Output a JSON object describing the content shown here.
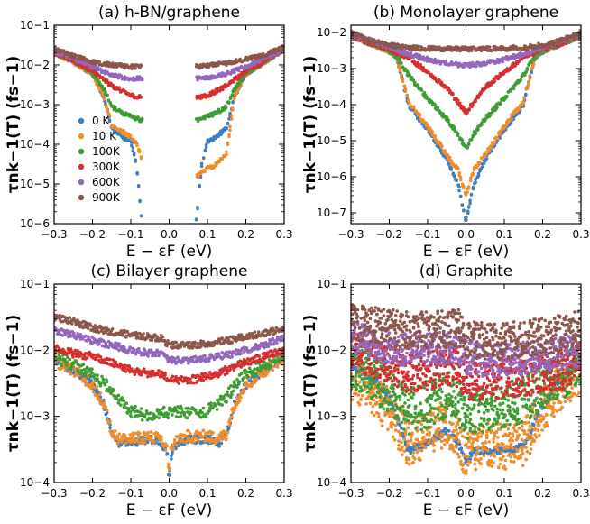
{
  "chart_data": [
    {
      "type": "scatter",
      "title": "(a) h-BN/graphene",
      "xlabel": "E − εF (eV)",
      "ylabel": "τnk−1(T) (fs−1)",
      "xlim": [
        -0.3,
        0.3
      ],
      "ylim_log10": [
        -6,
        -1
      ],
      "yscale": "log",
      "xticks": [
        "−0.3",
        "−0.2",
        "−0.1",
        "0.0",
        "0.1",
        "0.2",
        "0.3"
      ],
      "yticks": [
        "10−6",
        "10−5",
        "10−4",
        "10−3",
        "10−2",
        "10−1"
      ],
      "legend_position": "center-left",
      "gap": [
        -0.07,
        0.07
      ],
      "series": [
        {
          "name": "0 K",
          "color": "#3a7ec4",
          "band": 0.05,
          "x": [
            -0.3,
            -0.25,
            -0.2,
            -0.17,
            -0.15,
            -0.12,
            -0.1,
            -0.085,
            -0.075,
            -0.07,
            0.07,
            0.075,
            0.085,
            0.1,
            0.12,
            0.15,
            0.17,
            0.2,
            0.25,
            0.3
          ],
          "y": [
            0.02,
            0.012,
            0.006,
            0.0015,
            0.00025,
            0.00015,
            0.00012,
            3e-05,
            3e-06,
            1e-06,
            1e-06,
            3e-06,
            3e-05,
            0.00012,
            0.00015,
            0.00025,
            0.0015,
            0.006,
            0.012,
            0.025
          ]
        },
        {
          "name": "10 K",
          "color": "#f28c28",
          "band": 0.05,
          "x": [
            -0.3,
            -0.25,
            -0.2,
            -0.17,
            -0.15,
            -0.12,
            -0.1,
            -0.085,
            -0.07,
            0.07,
            0.085,
            0.1,
            0.12,
            0.15,
            0.17,
            0.2,
            0.25,
            0.3
          ],
          "y": [
            0.02,
            0.012,
            0.006,
            0.0015,
            0.0003,
            0.0002,
            0.00015,
            0.0001,
            4e-05,
            1.5e-05,
            2e-05,
            2.5e-05,
            3e-05,
            6e-05,
            0.0015,
            0.006,
            0.012,
            0.025
          ]
        },
        {
          "name": "100K",
          "color": "#3f9c35",
          "band": 0.05,
          "x": [
            -0.3,
            -0.25,
            -0.2,
            -0.17,
            -0.15,
            -0.12,
            -0.1,
            -0.085,
            -0.07,
            0.07,
            0.085,
            0.1,
            0.12,
            0.15,
            0.17,
            0.2,
            0.25,
            0.3
          ],
          "y": [
            0.02,
            0.013,
            0.006,
            0.0025,
            0.0009,
            0.0006,
            0.0005,
            0.00045,
            0.0004,
            0.0004,
            0.00045,
            0.0005,
            0.0006,
            0.0009,
            0.0025,
            0.006,
            0.013,
            0.025
          ]
        },
        {
          "name": "300K",
          "color": "#d62f2f",
          "band": 0.05,
          "x": [
            -0.3,
            -0.25,
            -0.2,
            -0.15,
            -0.1,
            -0.07,
            0.07,
            0.1,
            0.15,
            0.2,
            0.25,
            0.3
          ],
          "y": [
            0.02,
            0.013,
            0.007,
            0.003,
            0.0017,
            0.0015,
            0.0015,
            0.0017,
            0.003,
            0.007,
            0.013,
            0.025
          ]
        },
        {
          "name": "600K",
          "color": "#9467bd",
          "band": 0.05,
          "x": [
            -0.3,
            -0.25,
            -0.2,
            -0.15,
            -0.1,
            -0.07,
            0.07,
            0.1,
            0.15,
            0.2,
            0.25,
            0.3
          ],
          "y": [
            0.022,
            0.015,
            0.009,
            0.0055,
            0.0045,
            0.0045,
            0.0045,
            0.0048,
            0.006,
            0.009,
            0.015,
            0.025
          ]
        },
        {
          "name": "900K",
          "color": "#8c564b",
          "band": 0.05,
          "x": [
            -0.3,
            -0.25,
            -0.2,
            -0.15,
            -0.1,
            -0.07,
            0.07,
            0.1,
            0.15,
            0.2,
            0.25,
            0.3
          ],
          "y": [
            0.025,
            0.017,
            0.012,
            0.01,
            0.009,
            0.009,
            0.009,
            0.0095,
            0.011,
            0.014,
            0.018,
            0.028
          ]
        }
      ]
    },
    {
      "type": "scatter",
      "title": "(b) Monolayer graphene",
      "xlabel": "E − εF (eV)",
      "ylabel": "τnk−1(T) (fs−1)",
      "xlim": [
        -0.3,
        0.3
      ],
      "ylim_log10": [
        -7.3,
        -1.8
      ],
      "yscale": "log",
      "xticks": [
        "−0.3",
        "−0.2",
        "−0.1",
        "0.0",
        "0.1",
        "0.2",
        "0.3"
      ],
      "yticks": [
        "10−7",
        "10−6",
        "10−5",
        "10−4",
        "10−3",
        "10−2"
      ],
      "series": [
        {
          "name": "0 K",
          "color": "#3a7ec4",
          "band": 0.06,
          "x": [
            -0.3,
            -0.25,
            -0.2,
            -0.18,
            -0.15,
            -0.1,
            -0.05,
            -0.02,
            0.0,
            0.02,
            0.05,
            0.1,
            0.15,
            0.18,
            0.2,
            0.25,
            0.3
          ],
          "y": [
            0.008,
            0.005,
            0.003,
            0.002,
            0.0001,
            2e-05,
            3e-06,
            6e-07,
            6e-08,
            6e-07,
            3e-06,
            2e-05,
            0.0001,
            0.002,
            0.003,
            0.005,
            0.008
          ]
        },
        {
          "name": "10 K",
          "color": "#f28c28",
          "band": 0.06,
          "x": [
            -0.3,
            -0.25,
            -0.2,
            -0.18,
            -0.15,
            -0.1,
            -0.05,
            -0.02,
            0.0,
            0.02,
            0.05,
            0.1,
            0.15,
            0.18,
            0.2,
            0.25,
            0.3
          ],
          "y": [
            0.008,
            0.005,
            0.003,
            0.002,
            0.00012,
            2.5e-05,
            4e-06,
            1.5e-06,
            3e-07,
            1.5e-06,
            4e-06,
            2.5e-05,
            0.00012,
            0.002,
            0.003,
            0.005,
            0.008
          ]
        },
        {
          "name": "100K",
          "color": "#3f9c35",
          "band": 0.06,
          "x": [
            -0.3,
            -0.25,
            -0.2,
            -0.18,
            -0.15,
            -0.1,
            -0.05,
            -0.02,
            0.0,
            0.02,
            0.05,
            0.1,
            0.15,
            0.18,
            0.2,
            0.25,
            0.3
          ],
          "y": [
            0.008,
            0.005,
            0.003,
            0.0022,
            0.00065,
            0.00015,
            4e-05,
            1.5e-05,
            6e-06,
            1.5e-05,
            4e-05,
            0.00015,
            0.00065,
            0.0022,
            0.003,
            0.005,
            0.008
          ]
        },
        {
          "name": "300K",
          "color": "#d62f2f",
          "band": 0.06,
          "x": [
            -0.3,
            -0.25,
            -0.2,
            -0.15,
            -0.1,
            -0.05,
            0.0,
            0.05,
            0.1,
            0.15,
            0.2,
            0.25,
            0.3
          ],
          "y": [
            0.008,
            0.005,
            0.0035,
            0.002,
            0.0008,
            0.0003,
            6e-05,
            0.0003,
            0.0008,
            0.002,
            0.0035,
            0.005,
            0.008
          ]
        },
        {
          "name": "600K",
          "color": "#9467bd",
          "band": 0.06,
          "x": [
            -0.3,
            -0.25,
            -0.2,
            -0.15,
            -0.1,
            -0.05,
            0.0,
            0.05,
            0.1,
            0.15,
            0.2,
            0.25,
            0.3
          ],
          "y": [
            0.009,
            0.006,
            0.004,
            0.0025,
            0.0018,
            0.0014,
            0.0012,
            0.0014,
            0.0018,
            0.0025,
            0.004,
            0.006,
            0.009
          ]
        },
        {
          "name": "900K",
          "color": "#8c564b",
          "band": 0.06,
          "x": [
            -0.3,
            -0.25,
            -0.2,
            -0.15,
            -0.1,
            -0.05,
            0.0,
            0.05,
            0.1,
            0.15,
            0.2,
            0.25,
            0.3
          ],
          "y": [
            0.01,
            0.006,
            0.0045,
            0.0038,
            0.0036,
            0.0035,
            0.0035,
            0.0035,
            0.0036,
            0.0038,
            0.0045,
            0.006,
            0.01
          ]
        }
      ]
    },
    {
      "type": "scatter",
      "title": "(c) Bilayer graphene",
      "xlabel": "E − εF (eV)",
      "ylabel": "τnk−1(T) (fs−1)",
      "xlim": [
        -0.3,
        0.3
      ],
      "ylim_log10": [
        -4,
        -1
      ],
      "yscale": "log",
      "xticks": [
        "−0.3",
        "−0.2",
        "−0.1",
        "0.0",
        "0.1",
        "0.2",
        "0.3"
      ],
      "yticks": [
        "10−4",
        "10−3",
        "10−2",
        "10−1"
      ],
      "series": [
        {
          "name": "0 K",
          "color": "#3a7ec4",
          "band": 0.06,
          "x": [
            -0.3,
            -0.25,
            -0.2,
            -0.17,
            -0.15,
            -0.13,
            -0.1,
            -0.05,
            -0.02,
            -0.005,
            0.0,
            0.005,
            0.02,
            0.05,
            0.1,
            0.13,
            0.15,
            0.17,
            0.2,
            0.25,
            0.3
          ],
          "y": [
            0.007,
            0.005,
            0.003,
            0.0015,
            0.00055,
            0.0004,
            0.0004,
            0.00045,
            0.0004,
            0.00025,
            0.00012,
            0.00025,
            0.0004,
            0.00045,
            0.00045,
            0.0004,
            0.0005,
            0.0015,
            0.003,
            0.005,
            0.008
          ]
        },
        {
          "name": "10 K",
          "color": "#f28c28",
          "band": 0.09,
          "x": [
            -0.3,
            -0.25,
            -0.2,
            -0.17,
            -0.15,
            -0.13,
            -0.1,
            -0.05,
            -0.02,
            -0.005,
            0.0,
            0.005,
            0.02,
            0.05,
            0.1,
            0.13,
            0.15,
            0.17,
            0.2,
            0.25,
            0.3
          ],
          "y": [
            0.007,
            0.005,
            0.003,
            0.0015,
            0.0006,
            0.00045,
            0.00045,
            0.0005,
            0.00045,
            0.0003,
            0.00016,
            0.0003,
            0.00045,
            0.0005,
            0.0005,
            0.00045,
            0.00055,
            0.0015,
            0.003,
            0.005,
            0.008
          ]
        },
        {
          "name": "100K",
          "color": "#3f9c35",
          "band": 0.09,
          "x": [
            -0.3,
            -0.25,
            -0.2,
            -0.15,
            -0.1,
            -0.05,
            -0.02,
            0.0,
            0.02,
            0.05,
            0.1,
            0.15,
            0.2,
            0.25,
            0.3
          ],
          "y": [
            0.008,
            0.006,
            0.0045,
            0.0025,
            0.0012,
            0.001,
            0.0012,
            0.0011,
            0.0012,
            0.0011,
            0.0012,
            0.002,
            0.0045,
            0.006,
            0.009
          ]
        },
        {
          "name": "300K",
          "color": "#d62f2f",
          "band": 0.06,
          "x": [
            -0.3,
            -0.25,
            -0.2,
            -0.15,
            -0.1,
            -0.05,
            -0.02,
            0.0,
            0.05,
            0.1,
            0.15,
            0.2,
            0.25,
            0.3
          ],
          "y": [
            0.011,
            0.009,
            0.008,
            0.0065,
            0.005,
            0.0045,
            0.0045,
            0.0035,
            0.0035,
            0.004,
            0.005,
            0.0065,
            0.008,
            0.01
          ]
        },
        {
          "name": "600K",
          "color": "#9467bd",
          "band": 0.05,
          "x": [
            -0.3,
            -0.25,
            -0.2,
            -0.15,
            -0.1,
            -0.05,
            -0.02,
            0.0,
            0.05,
            0.1,
            0.15,
            0.2,
            0.25,
            0.3
          ],
          "y": [
            0.02,
            0.017,
            0.014,
            0.012,
            0.01,
            0.009,
            0.009,
            0.007,
            0.007,
            0.0075,
            0.0085,
            0.01,
            0.012,
            0.016
          ]
        },
        {
          "name": "900K",
          "color": "#8c564b",
          "band": 0.05,
          "x": [
            -0.3,
            -0.25,
            -0.2,
            -0.15,
            -0.1,
            -0.05,
            -0.02,
            0.0,
            0.05,
            0.1,
            0.15,
            0.2,
            0.25,
            0.3
          ],
          "y": [
            0.032,
            0.027,
            0.022,
            0.019,
            0.017,
            0.016,
            0.015,
            0.012,
            0.012,
            0.0125,
            0.014,
            0.016,
            0.018,
            0.022
          ]
        }
      ]
    },
    {
      "type": "scatter",
      "title": "(d) Graphite",
      "xlabel": "E − εF (eV)",
      "ylabel": "τnk−1(T) (fs−1)",
      "xlim": [
        -0.3,
        0.3
      ],
      "ylim_log10": [
        -4,
        -1
      ],
      "yscale": "log",
      "xticks": [
        "−0.3",
        "−0.2",
        "−0.1",
        "0.0",
        "0.1",
        "0.2",
        "0.3"
      ],
      "yticks": [
        "10−4",
        "10−3",
        "10−2",
        "10−1"
      ],
      "series": [
        {
          "name": "0 K",
          "color": "#3a7ec4",
          "band": 0.05,
          "x": [
            -0.3,
            -0.25,
            -0.2,
            -0.15,
            -0.1,
            -0.05,
            -0.02,
            0.0,
            0.02,
            0.05,
            0.1,
            0.15,
            0.2,
            0.25,
            0.3
          ],
          "y": [
            0.006,
            0.004,
            0.002,
            0.0003,
            0.0004,
            0.0006,
            0.0004,
            0.0002,
            0.0003,
            0.0003,
            0.0003,
            0.00035,
            0.0015,
            0.004,
            0.006
          ]
        },
        {
          "name": "10 K",
          "color": "#f28c28",
          "band": 0.35,
          "x": [
            -0.3,
            -0.25,
            -0.2,
            -0.15,
            -0.1,
            -0.05,
            -0.02,
            0.0,
            0.02,
            0.05,
            0.1,
            0.15,
            0.2,
            0.25,
            0.3
          ],
          "y": [
            0.004,
            0.0025,
            0.0012,
            0.0004,
            0.00055,
            0.0008,
            0.0005,
            0.00025,
            0.00035,
            0.00035,
            0.00035,
            0.0004,
            0.0012,
            0.003,
            0.005
          ]
        },
        {
          "name": "100K",
          "color": "#3f9c35",
          "band": 0.35,
          "x": [
            -0.3,
            -0.25,
            -0.2,
            -0.15,
            -0.1,
            -0.05,
            -0.02,
            0.0,
            0.02,
            0.05,
            0.1,
            0.15,
            0.2,
            0.25,
            0.3
          ],
          "y": [
            0.006,
            0.004,
            0.0025,
            0.0012,
            0.0015,
            0.0022,
            0.0016,
            0.0009,
            0.0012,
            0.0013,
            0.0015,
            0.0018,
            0.0028,
            0.004,
            0.006
          ]
        },
        {
          "name": "300K",
          "color": "#d62f2f",
          "band": 0.3,
          "x": [
            -0.3,
            -0.25,
            -0.2,
            -0.15,
            -0.1,
            -0.05,
            -0.02,
            0.0,
            0.02,
            0.05,
            0.1,
            0.15,
            0.2,
            0.25,
            0.3
          ],
          "y": [
            0.01,
            0.008,
            0.006,
            0.0045,
            0.005,
            0.006,
            0.0055,
            0.0035,
            0.0035,
            0.0035,
            0.0038,
            0.004,
            0.0045,
            0.005,
            0.007
          ]
        },
        {
          "name": "600K",
          "color": "#9467bd",
          "band": 0.25,
          "x": [
            -0.3,
            -0.25,
            -0.2,
            -0.15,
            -0.1,
            -0.05,
            -0.02,
            0.0,
            0.02,
            0.05,
            0.1,
            0.15,
            0.2,
            0.25,
            0.3
          ],
          "y": [
            0.016,
            0.013,
            0.011,
            0.01,
            0.01,
            0.011,
            0.012,
            0.008,
            0.0075,
            0.007,
            0.007,
            0.0075,
            0.008,
            0.009,
            0.01
          ]
        },
        {
          "name": "900K",
          "color": "#8c564b",
          "band": 0.28,
          "x": [
            -0.3,
            -0.25,
            -0.2,
            -0.15,
            -0.1,
            -0.05,
            -0.02,
            0.0,
            0.02,
            0.05,
            0.1,
            0.15,
            0.2,
            0.25,
            0.3
          ],
          "y": [
            0.028,
            0.025,
            0.022,
            0.02,
            0.02,
            0.021,
            0.022,
            0.015,
            0.014,
            0.014,
            0.014,
            0.015,
            0.016,
            0.018,
            0.021
          ]
        }
      ]
    }
  ]
}
